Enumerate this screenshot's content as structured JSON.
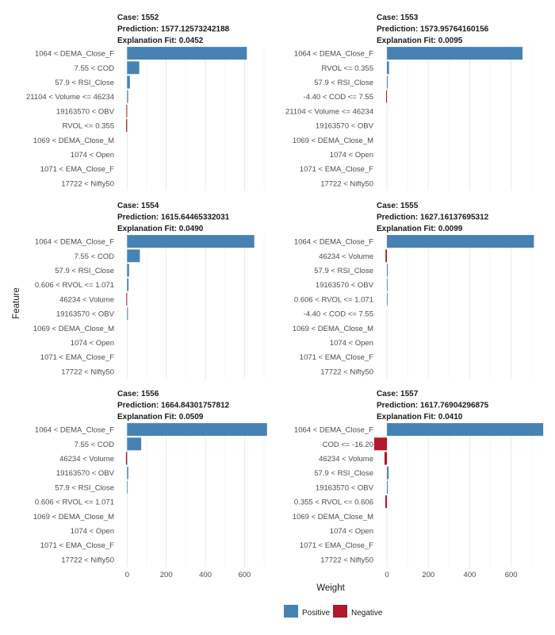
{
  "chart_data": {
    "type": "bar",
    "orientation": "horizontal",
    "facet_layout": "3 rows x 2 columns",
    "xlabel": "Weight",
    "ylabel": "Feature",
    "xlim": [
      -50,
      720
    ],
    "xticks": [
      0,
      200,
      400,
      600
    ],
    "grid": true,
    "legend": {
      "position": "bottom",
      "entries": [
        {
          "label": "Positive",
          "color": "#4682B4"
        },
        {
          "label": "Negative",
          "color": "#B2182B"
        }
      ]
    },
    "panels": [
      {
        "case": "Case: 1552",
        "prediction": "Prediction: 1577.12573242188",
        "fit": "Explanation Fit: 0.0452",
        "bars": [
          {
            "feature": "1064 < DEMA_Close_F",
            "weight": 612
          },
          {
            "feature": "7.55 < COD",
            "weight": 62
          },
          {
            "feature": "57.9 < RSI_Close",
            "weight": 14
          },
          {
            "feature": "21104 < Volume <= 46234",
            "weight": 5
          },
          {
            "feature": "19163570 < OBV",
            "weight": -4
          },
          {
            "feature": "RVOL <= 0.355",
            "weight": -5
          },
          {
            "feature": "1069 < DEMA_Close_M",
            "weight": 0
          },
          {
            "feature": "1074 < Open",
            "weight": 0
          },
          {
            "feature": "1071 < EMA_Close_F",
            "weight": 0
          },
          {
            "feature": "17722 < Nifty50",
            "weight": 0
          }
        ]
      },
      {
        "case": "Case: 1553",
        "prediction": "Prediction: 1573.95764160156",
        "fit": "Explanation Fit: 0.0095",
        "bars": [
          {
            "feature": "1064 < DEMA_Close_F",
            "weight": 655
          },
          {
            "feature": "RVOL <= 0.355",
            "weight": 10
          },
          {
            "feature": "57.9 < RSI_Close",
            "weight": 4
          },
          {
            "feature": "-4.40 < COD <= 7.55",
            "weight": -4
          },
          {
            "feature": "21104 < Volume <= 46234",
            "weight": 0
          },
          {
            "feature": "19163570 < OBV",
            "weight": 0
          },
          {
            "feature": "1069 < DEMA_Close_M",
            "weight": 0
          },
          {
            "feature": "1074 < Open",
            "weight": 0
          },
          {
            "feature": "1071 < EMA_Close_F",
            "weight": 0
          },
          {
            "feature": "17722 < Nifty50",
            "weight": 0
          }
        ]
      },
      {
        "case": "Case: 1554",
        "prediction": "Prediction: 1615.64465332031",
        "fit": "Explanation Fit: 0.0490",
        "bars": [
          {
            "feature": "1064 < DEMA_Close_F",
            "weight": 650
          },
          {
            "feature": "7.55 < COD",
            "weight": 65
          },
          {
            "feature": "57.9 < RSI_Close",
            "weight": 10
          },
          {
            "feature": "0.606 < RVOL <= 1.071",
            "weight": 7
          },
          {
            "feature": "46234 < Volume",
            "weight": -4
          },
          {
            "feature": "19163570 < OBV",
            "weight": 4
          },
          {
            "feature": "1069 < DEMA_Close_M",
            "weight": 0
          },
          {
            "feature": "1074 < Open",
            "weight": 0
          },
          {
            "feature": "1071 < EMA_Close_F",
            "weight": 0
          },
          {
            "feature": "17722 < Nifty50",
            "weight": 0
          }
        ]
      },
      {
        "case": "Case: 1555",
        "prediction": "Prediction: 1627.16137695312",
        "fit": "Explanation Fit: 0.0099",
        "bars": [
          {
            "feature": "1064 < DEMA_Close_F",
            "weight": 710
          },
          {
            "feature": "46234 < Volume",
            "weight": -7
          },
          {
            "feature": "57.9 < RSI_Close",
            "weight": 4
          },
          {
            "feature": "19163570 < OBV",
            "weight": 3
          },
          {
            "feature": "0.606 < RVOL <= 1.071",
            "weight": 3
          },
          {
            "feature": "-4.40 < COD <= 7.55",
            "weight": 0
          },
          {
            "feature": "1069 < DEMA_Close_M",
            "weight": 0
          },
          {
            "feature": "1074 < Open",
            "weight": 0
          },
          {
            "feature": "1071 < EMA_Close_F",
            "weight": 0
          },
          {
            "feature": "17722 < Nifty50",
            "weight": 0
          }
        ]
      },
      {
        "case": "Case: 1556",
        "prediction": "Prediction: 1664.84301757812",
        "fit": "Explanation Fit: 0.0509",
        "bars": [
          {
            "feature": "1064 < DEMA_Close_F",
            "weight": 715
          },
          {
            "feature": "7.55 < COD",
            "weight": 72
          },
          {
            "feature": "46234 < Volume",
            "weight": -6
          },
          {
            "feature": "19163570 < OBV",
            "weight": 6
          },
          {
            "feature": "57.9 < RSI_Close",
            "weight": 3
          },
          {
            "feature": "0.606 < RVOL <= 1.071",
            "weight": 0
          },
          {
            "feature": "1069 < DEMA_Close_M",
            "weight": 0
          },
          {
            "feature": "1074 < Open",
            "weight": 0
          },
          {
            "feature": "1071 < EMA_Close_F",
            "weight": 0
          },
          {
            "feature": "17722 < Nifty50",
            "weight": 0
          }
        ]
      },
      {
        "case": "Case: 1557",
        "prediction": "Prediction: 1617.76904296875",
        "fit": "Explanation Fit: 0.0410",
        "bars": [
          {
            "feature": "1064 < DEMA_Close_F",
            "weight": 755
          },
          {
            "feature": "COD <= -16.20",
            "weight": -62
          },
          {
            "feature": "46234 < Volume",
            "weight": -12
          },
          {
            "feature": "57.9 < RSI_Close",
            "weight": 8
          },
          {
            "feature": "19163570 < OBV",
            "weight": 4
          },
          {
            "feature": "0.355 < RVOL <= 0.606",
            "weight": -8
          },
          {
            "feature": "1069 < DEMA_Close_M",
            "weight": 0
          },
          {
            "feature": "1074 < Open",
            "weight": 0
          },
          {
            "feature": "1071 < EMA_Close_F",
            "weight": 0
          },
          {
            "feature": "17722 < Nifty50",
            "weight": 0
          }
        ]
      }
    ]
  }
}
